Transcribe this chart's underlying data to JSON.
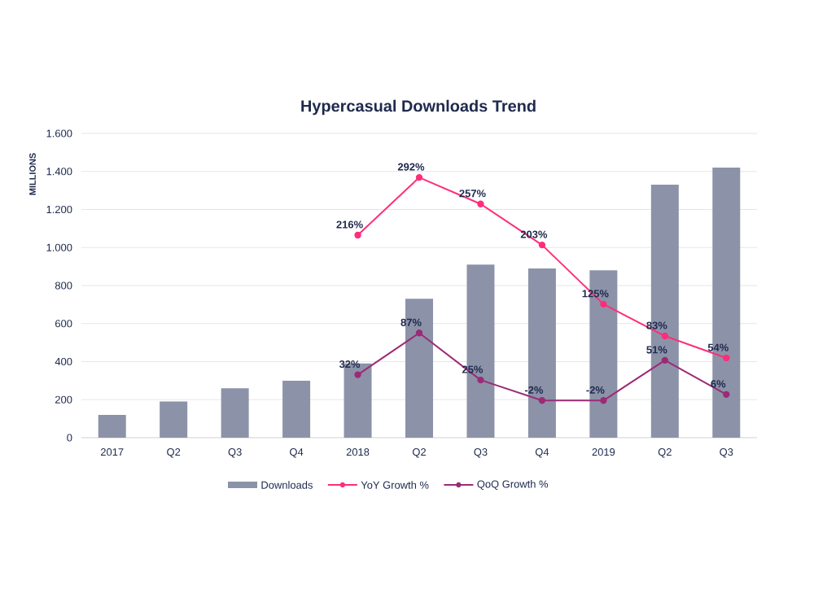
{
  "chart_data": {
    "type": "bar",
    "title": "Hypercasual Downloads Trend",
    "ylabel": "MILLIONS",
    "categories": [
      "2017",
      "Q2",
      "Q3",
      "Q4",
      "2018",
      "Q2",
      "Q3",
      "Q4",
      "2019",
      "Q2",
      "Q3"
    ],
    "series": [
      {
        "name": "Downloads",
        "color": "#8c93a8",
        "values": [
          120,
          190,
          260,
          300,
          390,
          730,
          910,
          890,
          880,
          1330,
          1420
        ]
      },
      {
        "name": "YoY Growth %",
        "type": "line",
        "axis": "y2",
        "color": "#ff2d7a",
        "values": [
          null,
          null,
          null,
          null,
          216,
          292,
          257,
          203,
          125,
          83,
          54
        ],
        "value_labels": [
          null,
          null,
          null,
          null,
          "216%",
          "292%",
          "257%",
          "203%",
          "125%",
          "83%",
          "54%"
        ]
      },
      {
        "name": "QoQ Growth %",
        "type": "line",
        "axis": "y2",
        "color": "#9c2b77",
        "values": [
          null,
          null,
          null,
          null,
          32,
          87,
          25,
          -2,
          -2,
          51,
          6
        ],
        "value_labels": [
          null,
          null,
          null,
          null,
          "32%",
          "87%",
          "25%",
          "-2%",
          "-2%",
          "51%",
          "6%"
        ]
      }
    ],
    "ylim": [
      0,
      1600
    ],
    "yticks": [
      {
        "value": 0,
        "label": "0"
      },
      {
        "value": 200,
        "label": "200"
      },
      {
        "value": 400,
        "label": "400"
      },
      {
        "value": 600,
        "label": "600"
      },
      {
        "value": 800,
        "label": "800"
      },
      {
        "value": 1000,
        "label": "1.000"
      },
      {
        "value": 1200,
        "label": "1.200"
      },
      {
        "value": 1400,
        "label": "1.400"
      },
      {
        "value": 1600,
        "label": "1.600"
      }
    ],
    "y2lim": [
      -51,
      350
    ],
    "grid": "y",
    "legend": "bottom",
    "marker": "circle",
    "line_style": "solid"
  }
}
